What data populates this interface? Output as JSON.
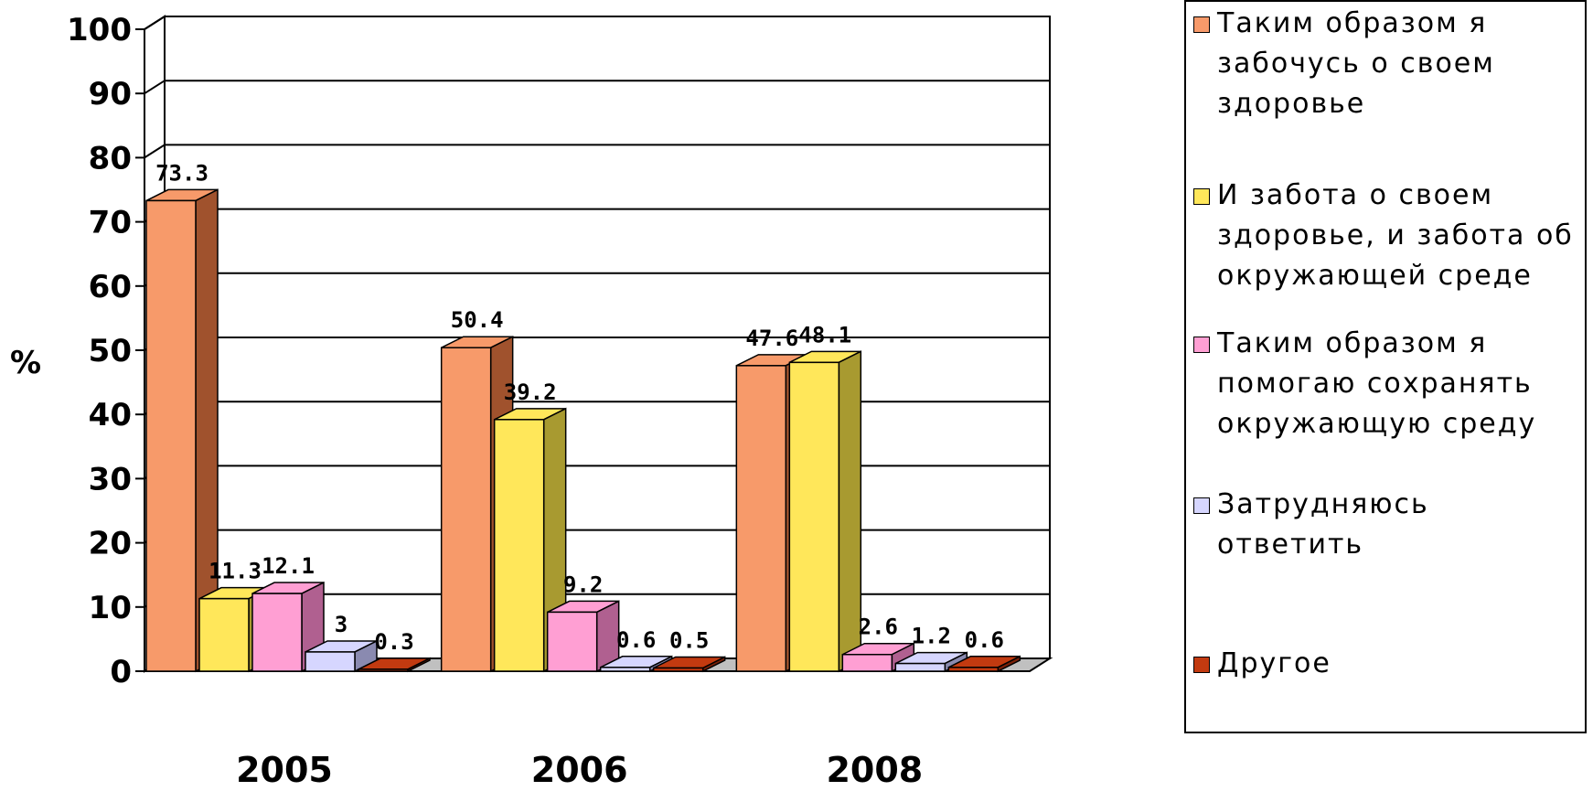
{
  "chart_data": {
    "type": "bar",
    "ylabel": "%",
    "ylim": [
      0,
      100
    ],
    "yticks": [
      "0",
      "10",
      "20",
      "30",
      "40",
      "50",
      "60",
      "70",
      "80",
      "90",
      "100"
    ],
    "categories": [
      "2005",
      "2006",
      "2008"
    ],
    "grid": true,
    "legend_position": "right",
    "series": [
      {
        "name": "Таким образом я забочусь о своем здоровье",
        "color": "#f79a6a",
        "side": "#a0522d",
        "values": [
          73.3,
          50.4,
          47.6
        ],
        "labels": [
          "73.3",
          "50.4",
          "47.6"
        ]
      },
      {
        "name": "И забота о своем здоровье, и забота об окружающей среде",
        "color": "#ffe75a",
        "side": "#a89a30",
        "values": [
          11.3,
          39.2,
          48.1
        ],
        "labels": [
          "11.3",
          "39.2",
          "48.1"
        ]
      },
      {
        "name": "Таким образом я помогаю сохранять окружающую среду",
        "color": "#ff9fd3",
        "side": "#b06090",
        "values": [
          12.1,
          9.2,
          2.6
        ],
        "labels": [
          "12.1",
          "9.2",
          "2.6"
        ]
      },
      {
        "name": "Затрудняюсь ответить",
        "color": "#d6d6ff",
        "side": "#8a8ab0",
        "values": [
          3,
          0.6,
          1.2
        ],
        "labels": [
          "3",
          "0.6",
          "1.2"
        ]
      },
      {
        "name": "Другое",
        "color": "#c23a10",
        "side": "#7a2008",
        "values": [
          0.3,
          0.5,
          0.6
        ],
        "labels": [
          "0.3",
          "0.5",
          "0.6"
        ]
      }
    ]
  },
  "legend": {
    "items": [
      "Таким образом я забочусь о своем здоровье",
      "И забота о своем здоровье, и забота об окружающей среде",
      "Таким образом я помогаю сохранять окружающую среду",
      "Затрудняюсь ответить",
      "Другое"
    ]
  }
}
